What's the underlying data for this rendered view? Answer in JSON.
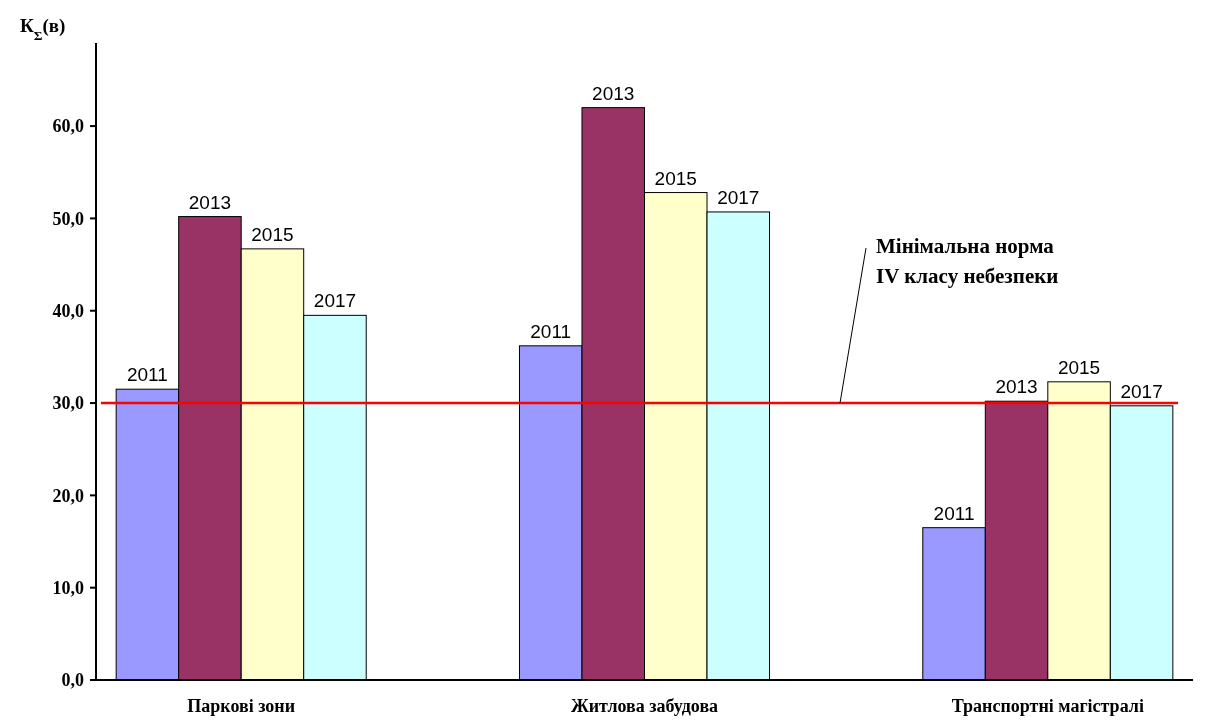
{
  "chart_data": {
    "type": "bar",
    "ylabel": "К$_{Σ}$(в)",
    "categories": [
      "Паркові зони",
      "Житлова забудова",
      "Транспортні магістралі"
    ],
    "series": [
      {
        "name": "2011",
        "color": "#9999ff",
        "values": [
          31.5,
          36.2,
          16.5
        ]
      },
      {
        "name": "2013",
        "color": "#993366",
        "values": [
          50.2,
          62.0,
          30.2
        ]
      },
      {
        "name": "2015",
        "color": "#ffffcc",
        "values": [
          46.7,
          52.8,
          32.3
        ]
      },
      {
        "name": "2017",
        "color": "#ccffff",
        "values": [
          39.5,
          50.7,
          29.7
        ]
      }
    ],
    "ylim": [
      0,
      69
    ],
    "yticks": [
      {
        "value": 0,
        "label": "0,0"
      },
      {
        "value": 10,
        "label": "10,0"
      },
      {
        "value": 20,
        "label": "20,0"
      },
      {
        "value": 30,
        "label": "30,0"
      },
      {
        "value": 40,
        "label": "40,0"
      },
      {
        "value": 50,
        "label": "50,0"
      },
      {
        "value": 60,
        "label": "60,0"
      }
    ],
    "ref_lines": [
      {
        "axis": "y",
        "value": 30,
        "label": "Мінімальна норма IV класу небезпеки",
        "color": "#ff0000"
      }
    ],
    "grid": false
  }
}
